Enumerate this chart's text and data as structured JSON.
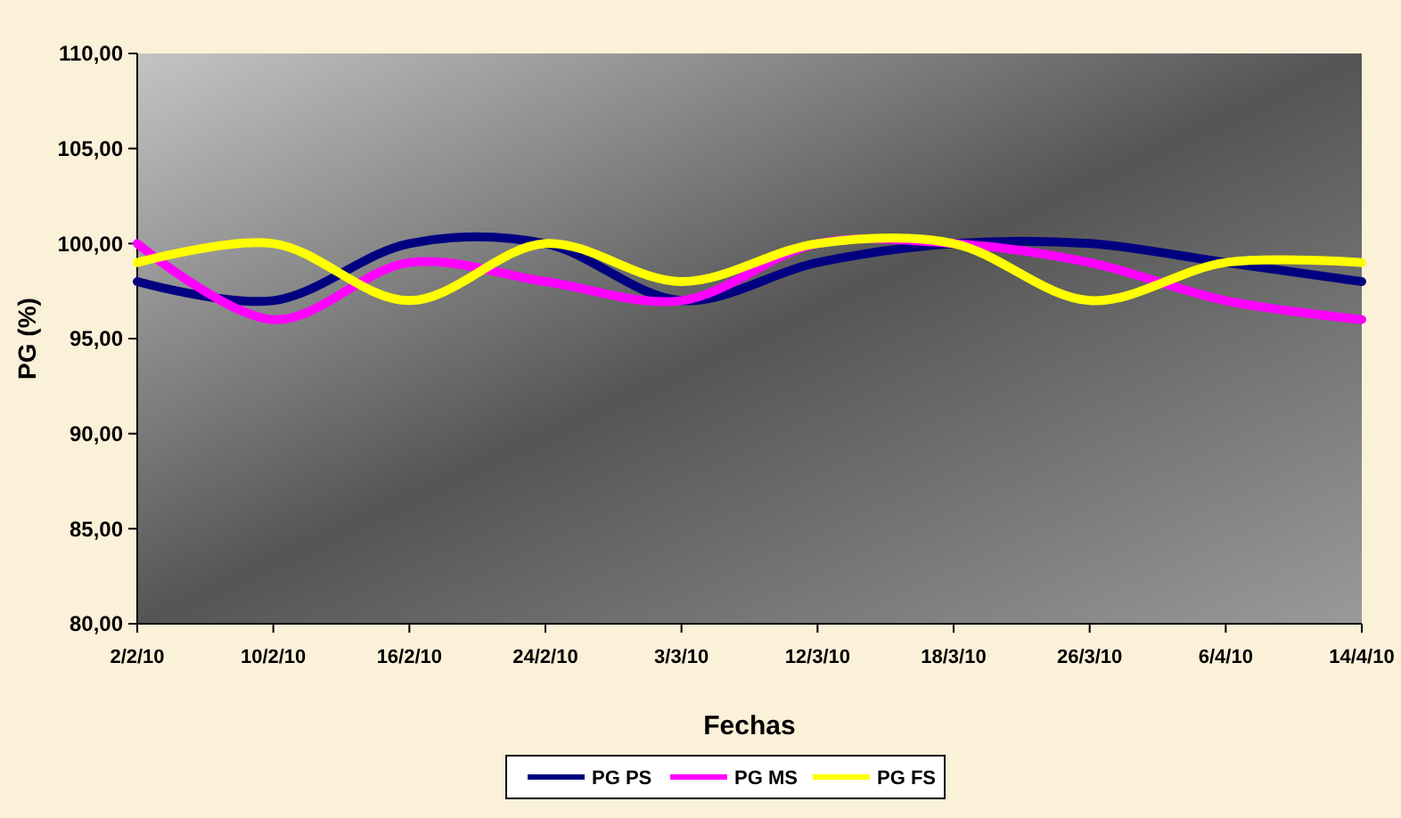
{
  "chart_data": {
    "type": "line",
    "xlabel": "Fechas",
    "ylabel": "PG (%)",
    "categories": [
      "2/2/10",
      "10/2/10",
      "16/2/10",
      "24/2/10",
      "3/3/10",
      "12/3/10",
      "18/3/10",
      "26/3/10",
      "6/4/10",
      "14/4/10"
    ],
    "series": [
      {
        "name": "PG PS",
        "color": "#000080",
        "values": [
          98,
          97,
          100,
          100,
          97,
          99,
          100,
          100,
          99,
          98
        ]
      },
      {
        "name": "PG MS",
        "color": "#ff00ff",
        "values": [
          100,
          96,
          99,
          98,
          97,
          100,
          100,
          99,
          97,
          96
        ]
      },
      {
        "name": "PG FS",
        "color": "#ffff00",
        "values": [
          99,
          100,
          97,
          100,
          98,
          100,
          100,
          97,
          99,
          99
        ]
      }
    ],
    "ylim": [
      80,
      110
    ],
    "yticks": [
      {
        "value": 80,
        "label": "80,00"
      },
      {
        "value": 85,
        "label": "85,00"
      },
      {
        "value": 90,
        "label": "90,00"
      },
      {
        "value": 95,
        "label": "95,00"
      },
      {
        "value": 100,
        "label": "100,00"
      },
      {
        "value": 105,
        "label": "105,00"
      },
      {
        "value": 110,
        "label": "110,00"
      }
    ],
    "grid": false,
    "legend": "bottom",
    "marker": "none",
    "line_style": "solid"
  }
}
